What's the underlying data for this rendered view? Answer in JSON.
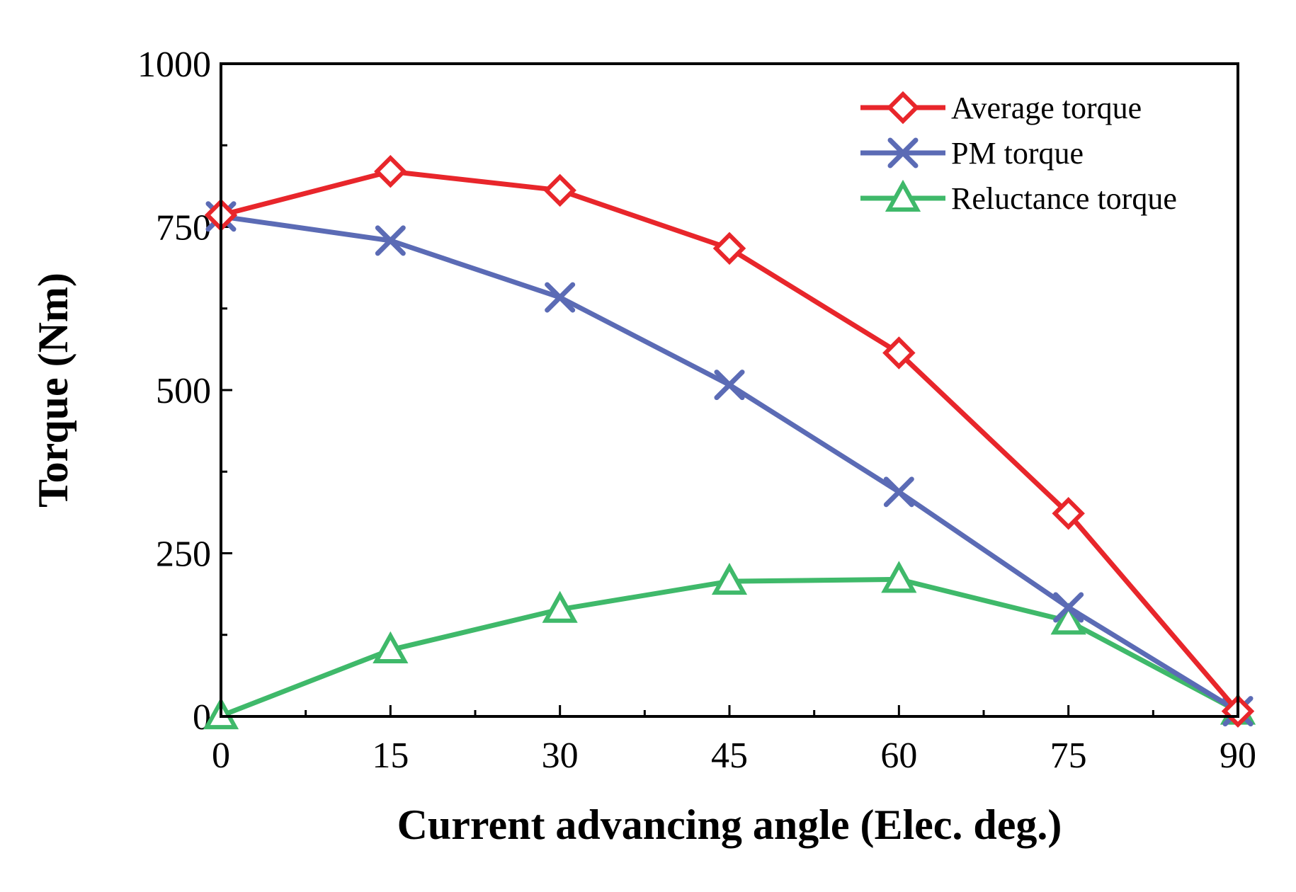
{
  "chart_data": {
    "type": "line",
    "title": "",
    "xlabel": "Current advancing angle (Elec. deg.)",
    "ylabel": "Torque (Nm)",
    "x": [
      0,
      15,
      30,
      45,
      60,
      75,
      90
    ],
    "xlim": [
      0,
      90
    ],
    "ylim": [
      0,
      1000
    ],
    "xticks": [
      "0",
      "15",
      "30",
      "45",
      "60",
      "75",
      "90"
    ],
    "yticks": [
      "0",
      "250",
      "500",
      "750",
      "1000"
    ],
    "legend_position": "top-right",
    "grid": false,
    "series": [
      {
        "name": "Average torque",
        "marker": "diamond",
        "color": "#e8262b",
        "values": [
          768,
          835,
          806,
          717,
          557,
          311,
          8
        ]
      },
      {
        "name": "PM torque",
        "marker": "x",
        "color": "#5b6bb5",
        "values": [
          766,
          729,
          642,
          508,
          344,
          167,
          8
        ]
      },
      {
        "name": "Reluctance torque",
        "marker": "triangle",
        "color": "#3fb96a",
        "values": [
          1,
          102,
          164,
          207,
          210,
          146,
          8
        ]
      }
    ]
  }
}
